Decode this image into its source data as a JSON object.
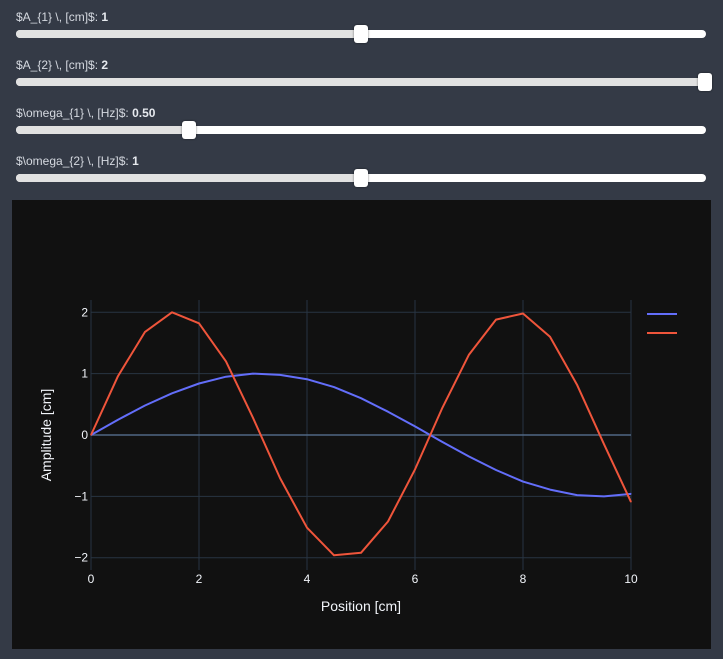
{
  "sliders": [
    {
      "label": "$A_{1} \\, [cm]$: ",
      "value_text": "1",
      "min": 0,
      "max": 2,
      "value": 1
    },
    {
      "label": "$A_{2} \\, [cm]$: ",
      "value_text": "2",
      "min": 0,
      "max": 2,
      "value": 2
    },
    {
      "label": "$\\omega_{1} \\, [Hz]$: ",
      "value_text": "0.50",
      "min": 0,
      "max": 2,
      "value": 0.5
    },
    {
      "label": "$\\omega_{2} \\, [Hz]$: ",
      "value_text": "1",
      "min": 0,
      "max": 2,
      "value": 1
    }
  ],
  "colors": {
    "series1": "#636efa",
    "series2": "#ef553b",
    "grid": "#283442",
    "axis_text": "#f2f5fa",
    "plot_bg": "#111111",
    "page_bg": "#343a46"
  },
  "chart_data": {
    "type": "line",
    "title": "",
    "xlabel": "Position [cm]",
    "ylabel": "Amplitude [cm]",
    "xlim": [
      0,
      10
    ],
    "ylim": [
      -2.2,
      2.2
    ],
    "xticks": [
      0,
      2,
      4,
      6,
      8,
      10
    ],
    "yticks": [
      -2,
      -1,
      0,
      1,
      2
    ],
    "ytick_labels": [
      "−2",
      "−1",
      "0",
      "1",
      "2"
    ],
    "grid": true,
    "legend": "top-right",
    "x": [
      0,
      0.5,
      1,
      1.5,
      2,
      2.5,
      3,
      3.5,
      4,
      4.5,
      5,
      5.5,
      6,
      6.5,
      7,
      7.5,
      8,
      8.5,
      9,
      9.5,
      10
    ],
    "series": [
      {
        "values": [
          0,
          0.25,
          0.48,
          0.68,
          0.84,
          0.95,
          1.0,
          0.98,
          0.91,
          0.78,
          0.6,
          0.38,
          0.14,
          -0.11,
          -0.35,
          -0.57,
          -0.76,
          -0.89,
          -0.98,
          -1.0,
          -0.96
        ]
      },
      {
        "values": [
          0,
          0.96,
          1.68,
          2.0,
          1.82,
          1.2,
          0.28,
          -0.7,
          -1.51,
          -1.96,
          -1.92,
          -1.41,
          -0.56,
          0.43,
          1.31,
          1.88,
          1.98,
          1.6,
          0.82,
          -0.15,
          -1.09
        ]
      }
    ]
  }
}
